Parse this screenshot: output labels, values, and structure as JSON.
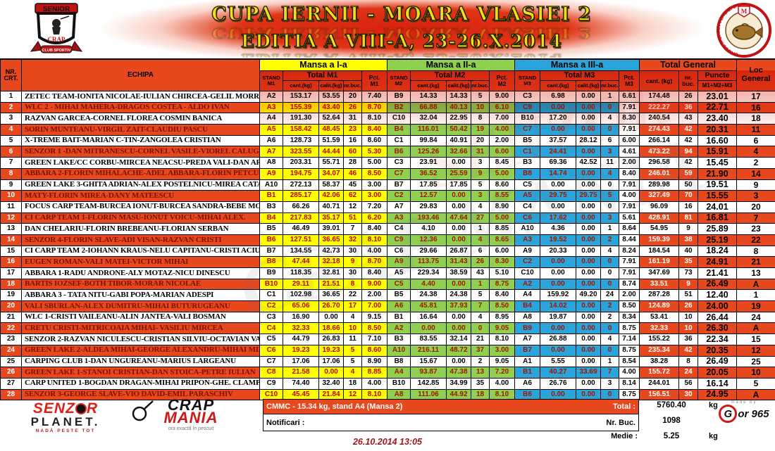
{
  "header": {
    "title_line1": "CUPA IERNII - MOARA VLASIEI 2",
    "title_line2": "EDITIA  A VIII-A, 23-26.X.2014",
    "left_badge": {
      "top": "SENIOR",
      "middle": "CRAP",
      "bottom": "CLUB SPORTIV"
    },
    "right_badge": {
      "ring_text": "LACUL MOARA VLASIEI 2",
      "letter": "M"
    }
  },
  "table": {
    "headers": {
      "nr_crt": "NR.\nCRT.",
      "echipa": "ECHIPA",
      "mansa1": "Mansa a I-a",
      "mansa2": "Mansa a II-a",
      "mansa3": "Mansa a III-a",
      "total_general": "Total General",
      "stand_m1": "STAND\nM1",
      "stand_m2": "STAND\nM2",
      "stand_m3": "STAND\nM3",
      "total_m1": "Total M1",
      "total_m2": "Total M2",
      "total_m3": "Total M3",
      "cant": "cant.(kg)",
      "calit": "calit.(kg)",
      "buc": "nr.buc.",
      "pct_m1": "Pct.\nM1",
      "pct_m2": "Pct.\nM2",
      "pct_m3": "Pct.\nM3",
      "tg_cant": "cant. (kg)",
      "tg_buc": "nr. buc.",
      "puncte": "Puncte",
      "puncte_sub": "M1+M2+M3",
      "loc": "Loc\nGeneral"
    },
    "rows": [
      [
        "1",
        "ZETEC TEAM-IONITA NICOLAE-IULIAN CHIRCEA-GELIL MORRIS",
        "A2",
        "153.17",
        "53.55",
        "20",
        "7.40",
        "B9",
        "14.33",
        "14.33",
        "5",
        "9.00",
        "C3",
        "6.98",
        "0.00",
        "1",
        "6.61",
        "174.48",
        "26",
        "23.01",
        "17"
      ],
      [
        "2",
        "WLC 2 - MIHAI MAHERA-DRAGOS COSTEA - ALDO IVAN",
        "A3",
        "155.39",
        "43.40",
        "26",
        "8.70",
        "B2",
        "66.88",
        "40.13",
        "10",
        "6.10",
        "C9",
        "0.00",
        "0.00",
        "0",
        "7.91",
        "222.27",
        "36",
        "22.71",
        "16"
      ],
      [
        "3",
        "RAZVAN GARCEA-CORNEL FLOREA COSMIN BANICA",
        "A4",
        "191.30",
        "52.64",
        "31",
        "8.10",
        "C10",
        "32.04",
        "22.95",
        "8",
        "7.00",
        "B10",
        "17.20",
        "0.00",
        "4",
        "8.30",
        "240.54",
        "43",
        "23.40",
        "18"
      ],
      [
        "4",
        "SORIN MUNTEANU-VIRGIL ZAIT-CLAUDIU PASCU",
        "A5",
        "158.42",
        "48.45",
        "23",
        "8.40",
        "B4",
        "116.01",
        "50.42",
        "19",
        "4.00",
        "C7",
        "0.00",
        "0.00",
        "0",
        "7.91",
        "274.43",
        "42",
        "20.31",
        "11"
      ],
      [
        "5",
        "X-TREME BAIT-MARIAN C-TIN-ZANGOLEA CRISTIAN",
        "A6",
        "128.73",
        "51.59",
        "16",
        "8.60",
        "C1",
        "99.84",
        "40.91",
        "20",
        "2.00",
        "B5",
        "37.57",
        "28.12",
        "6",
        "6.00",
        "266.14",
        "42",
        "16.60",
        "6"
      ],
      [
        "6",
        "SENZOR 1 -DAN MITRANESCU-CORNEL VASILE-VIOREL CALUGAR",
        "A7",
        "323.55",
        "44.44",
        "60",
        "5.30",
        "B6",
        "125.26",
        "32.66",
        "31",
        "6.00",
        "C1",
        "24.41",
        "0.00",
        "3",
        "4.61",
        "473.22",
        "94",
        "15.91",
        "4"
      ],
      [
        "7",
        "GREEN LAKE/CC CORBU-MIRCEA NEACSU-PREDA VALI-DAN ARG",
        "A8",
        "203.31",
        "55.71",
        "28",
        "5.00",
        "C3",
        "23.91",
        "0.00",
        "3",
        "8.45",
        "B3",
        "69.36",
        "42.52",
        "11",
        "2.00",
        "296.58",
        "42",
        "15.45",
        "2"
      ],
      [
        "8",
        "ABBARA 2-FLORIN MIHALACHE-ADEL ABBARA-FLORIN PETCU",
        "A9",
        "194.75",
        "34.07",
        "46",
        "8.50",
        "C7",
        "36.52",
        "25.59",
        "9",
        "5.00",
        "B8",
        "14.74",
        "0.00",
        "4",
        "8.40",
        "246.01",
        "59",
        "21.90",
        "14"
      ],
      [
        "9",
        "GREEN LAKE 3-GHITA ADRIAN-ALEX POSTELNICU-MIREA CATALI",
        "A10",
        "272.13",
        "58.37",
        "45",
        "3.00",
        "B7",
        "17.85",
        "17.85",
        "5",
        "8.60",
        "C5",
        "0.00",
        "0.00",
        "0",
        "7.91",
        "289.98",
        "50",
        "19.51",
        "9"
      ],
      [
        "10",
        "MATY-FLORIN MIREA-DANY MATEESCU",
        "B1",
        "285.17",
        "42.06",
        "62",
        "3.00",
        "C2",
        "12.57",
        "0.00",
        "3",
        "8.55",
        "A5",
        "29.75",
        "29.75",
        "5",
        "4.00",
        "327.49",
        "70",
        "15.55",
        "3"
      ],
      [
        "11",
        "FOCUS CARP TEAM-BURCEA IONUT-BURCEA SANDRA-BEBE MOIS",
        "B3",
        "66.26",
        "40.71",
        "12",
        "7.20",
        "A7",
        "29.83",
        "0.00",
        "4",
        "8.90",
        "C4",
        "0.00",
        "0.00",
        "0",
        "7.91",
        "96.09",
        "16",
        "24.01",
        "20"
      ],
      [
        "12",
        "CI CARP TEAM 1-FLORIN MASU-IONUT VOICU-MIHAI ALEX.",
        "B4",
        "217.83",
        "35.17",
        "51",
        "6.20",
        "A3",
        "193.46",
        "47.64",
        "27",
        "5.00",
        "C6",
        "17.62",
        "0.00",
        "3",
        "5.61",
        "428.91",
        "81",
        "16.81",
        "7"
      ],
      [
        "13",
        "DAN CHELARIU-FLORIN BREBEANU-FLORIAN SERBAN",
        "B5",
        "46.49",
        "39.01",
        "7",
        "8.40",
        "C4",
        "4.10",
        "0.00",
        "1",
        "8.85",
        "A10",
        "4.36",
        "0.00",
        "1",
        "8.64",
        "54.95",
        "9",
        "25.89",
        "23"
      ],
      [
        "14",
        "SENZOR 4-FLORIN SLAVE-ADI VISAN-RAZVAN CRISTI",
        "B6",
        "127.51",
        "36.65",
        "32",
        "8.10",
        "C9",
        "12.36",
        "0.00",
        "4",
        "8.65",
        "A3",
        "19.52",
        "0.00",
        "2",
        "8.44",
        "159.39",
        "38",
        "25.19",
        "22"
      ],
      [
        "15",
        "CI CARP TEAM 2-IOHANN KRAUS-NELU CAPITANU-CRISTI ACIUB",
        "B7",
        "134.55",
        "42.73",
        "30",
        "4.00",
        "C6",
        "29.66",
        "26.87",
        "6",
        "6.00",
        "A9",
        "20.33",
        "0.00",
        "4",
        "8.24",
        "184.54",
        "40",
        "18.24",
        "8"
      ],
      [
        "16",
        "EUGEN ROMAN-VALI MATEI-VICTOR MIHAI",
        "B8",
        "47.44",
        "32.18",
        "9",
        "8.70",
        "A9",
        "113.75",
        "31.43",
        "26",
        "8.30",
        "C2",
        "0.00",
        "0.00",
        "0",
        "7.91",
        "161.19",
        "35",
        "24.91",
        "21"
      ],
      [
        "17",
        "ABBARA 1-RADU ANDRONE-ALY MOTAZ-NICU DINESCU",
        "B9",
        "118.35",
        "32.81",
        "30",
        "8.40",
        "A5",
        "229.34",
        "38.59",
        "43",
        "5.10",
        "C10",
        "0.00",
        "0.00",
        "0",
        "7.91",
        "347.69",
        "73",
        "21.41",
        "13"
      ],
      [
        "18",
        "BARTIS IOZSEF-BOTH TIBOR-MORAR NICOLAE",
        "B10",
        "29.11",
        "21.51",
        "8",
        "9.00",
        "C5",
        "4.40",
        "0.00",
        "1",
        "8.75",
        "A2",
        "0.00",
        "0.00",
        "0",
        "8.74",
        "33.51",
        "9",
        "26.49",
        "A"
      ],
      [
        "19",
        "ABBARA 3 - TATA NITU-GABI POPA-MARIAN ADESPI",
        "C1",
        "102.98",
        "36.65",
        "22",
        "2.00",
        "B5",
        "24.38",
        "24.38",
        "5",
        "8.40",
        "A4",
        "159.92",
        "49.20",
        "24",
        "2.00",
        "287.28",
        "51",
        "12.40",
        "1"
      ],
      [
        "20",
        "VALI SBURLAN-ALEX DUMITRU-MIHAI BUTURUGEANU",
        "C2",
        "65.06",
        "26.70",
        "17",
        "7.00",
        "A6",
        "45.81",
        "37.93",
        "7",
        "8.50",
        "B4",
        "14.02",
        "0.00",
        "2",
        "8.50",
        "124.89",
        "26",
        "24.00",
        "19"
      ],
      [
        "21",
        "WLC 1-CRISTI VAILEANU-ALIN JANTEA-VALI BOSMAN",
        "C3",
        "16.90",
        "0.00",
        "4",
        "9.15",
        "B1",
        "16.64",
        "0.00",
        "4",
        "8.95",
        "A8",
        "19.87",
        "0.00",
        "2",
        "8.34",
        "53.41",
        "10",
        "26.44",
        "24"
      ],
      [
        "22",
        "CRETU CRISTI-MITRICOAIA MIHAI- VASILIU MIRCEA",
        "C4",
        "32.33",
        "18.66",
        "10",
        "8.50",
        "A2",
        "0.00",
        "0.00",
        "0",
        "9.05",
        "B9",
        "0.00",
        "0.00",
        "0",
        "8.75",
        "32.33",
        "10",
        "26.30",
        "A"
      ],
      [
        "23",
        "SENZOR 2-RAZVAN NICULESCU-CRISTIAN SILVIU-OCTAVIAN VAL",
        "C5",
        "44.79",
        "26.83",
        "11",
        "7.10",
        "B3",
        "83.55",
        "32.14",
        "21",
        "8.10",
        "A7",
        "26.88",
        "0.00",
        "4",
        "7.14",
        "155.22",
        "36",
        "22.34",
        "15"
      ],
      [
        "24",
        "GREEN LAKE 2-ALDEA MIHAI-GEORGE ALEXANDRU-MIHAI MLAD",
        "C6",
        "19.23",
        "19.23",
        "5",
        "8.60",
        "A10",
        "216.11",
        "48.72",
        "37",
        "3.00",
        "B7",
        "0.00",
        "0.00",
        "0",
        "8.75",
        "235.34",
        "42",
        "20.35",
        "12"
      ],
      [
        "25",
        "CARPING CLUB 1-DAN UNGUREANU-MARIUS LARGEANU",
        "C7",
        "17.06",
        "17.06",
        "5",
        "8.90",
        "B8",
        "15.67",
        "0.00",
        "2",
        "9.05",
        "A1",
        "5.55",
        "0.00",
        "1",
        "8.54",
        "38.28",
        "8",
        "26.49",
        "25"
      ],
      [
        "26",
        "GREEN LAKE 1-STANOI CRISTIAN-DAN STOICA-PETRE IULIAN",
        "C8",
        "21.58",
        "0.00",
        "4",
        "8.85",
        "A4",
        "93.87",
        "47.38",
        "13",
        "7.20",
        "B1",
        "40.27",
        "33.69",
        "7",
        "4.00",
        "155.72",
        "24",
        "20.05",
        "10"
      ],
      [
        "27",
        "CARP UNITED 1-BOGDAN DRAGAN-MIHAI PRIPON-GHE. CLAMPA",
        "C9",
        "74.40",
        "32.40",
        "18",
        "4.00",
        "B10",
        "142.85",
        "34.99",
        "35",
        "4.00",
        "A6",
        "26.76",
        "0.00",
        "3",
        "8.14",
        "244.01",
        "56",
        "16.14",
        "5"
      ],
      [
        "28",
        "SENZOR 3-GEORGE SLAVE-VIO DAVID-EMIL PARASCHIV",
        "C10",
        "45.45",
        "21.84",
        "12",
        "8.10",
        "A8",
        "111.06",
        "44.92",
        "18",
        "8.10",
        "B6",
        "0.00",
        "0.00",
        "0",
        "8.75",
        "156.51",
        "30",
        "24.95",
        "A"
      ]
    ]
  },
  "footer": {
    "cmmc": "CMMC - 15.34 kg, stand A4 (Mansa 2)",
    "total_label": "Total :",
    "total_value": "5760.40",
    "total_unit": "kg",
    "notificari_label": "Notificari :",
    "nr_buc_label": "Nr. Buc.",
    "nr_buc_value": "1098",
    "medie_label": "Medie :",
    "medie_value": "5.25",
    "medie_unit": "kg",
    "datetime": "26.10.2014 13:05",
    "senzor_planet": {
      "part1": "SENZ",
      "part2": "R",
      "planet": "PLANET.",
      "tagline": "NADĂ PESTE TOT"
    },
    "crap_mania": {
      "line1": "CRAP",
      "line2": "MANIA",
      "tagline": "ora exactă în pescuit"
    },
    "gor": {
      "made_by": "made by",
      "g": "G",
      "rest": "or 965"
    }
  },
  "watermarks": {
    "wm1": "CRAP MANIA",
    "wm2": "SENZOR"
  },
  "colors": {
    "orange": "#e8481e",
    "yellow": "#ffff00",
    "green": "#8fd14f",
    "blue": "#2ba4d9",
    "title_yellow": "#f2dd13",
    "dark_red_text": "#7a1200"
  }
}
